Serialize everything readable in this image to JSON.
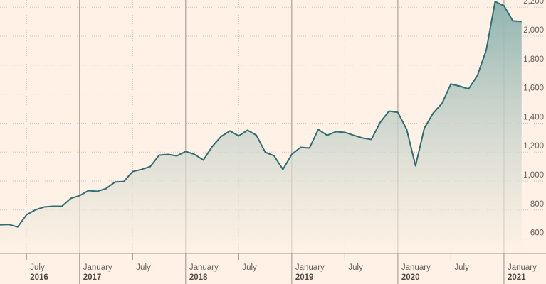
{
  "chart_data": {
    "type": "area",
    "color": "#2e6e73",
    "x": [
      "2016-04",
      "2016-05",
      "2016-06",
      "2016-07",
      "2016-08",
      "2016-09",
      "2016-10",
      "2016-11",
      "2016-12",
      "2017-01",
      "2017-02",
      "2017-03",
      "2017-04",
      "2017-05",
      "2017-06",
      "2017-07",
      "2017-08",
      "2017-09",
      "2017-10",
      "2017-11",
      "2017-12",
      "2018-01",
      "2018-02",
      "2018-03",
      "2018-04",
      "2018-05",
      "2018-06",
      "2018-07",
      "2018-08",
      "2018-09",
      "2018-10",
      "2018-11",
      "2018-12",
      "2019-01",
      "2019-02",
      "2019-03",
      "2019-04",
      "2019-05",
      "2019-06",
      "2019-07",
      "2019-08",
      "2019-09",
      "2019-10",
      "2019-11",
      "2019-12",
      "2020-01",
      "2020-02",
      "2020-03",
      "2020-04",
      "2020-05",
      "2020-06",
      "2020-07",
      "2020-08",
      "2020-09",
      "2020-10",
      "2020-11",
      "2020-12",
      "2021-01",
      "2021-02",
      "2021-03"
    ],
    "values": [
      698,
      700,
      683,
      767,
      801,
      821,
      826,
      826,
      880,
      899,
      934,
      929,
      948,
      993,
      997,
      1066,
      1080,
      1100,
      1179,
      1184,
      1174,
      1204,
      1184,
      1145,
      1238,
      1307,
      1346,
      1312,
      1351,
      1316,
      1199,
      1174,
      1080,
      1184,
      1233,
      1228,
      1356,
      1316,
      1341,
      1336,
      1316,
      1297,
      1287,
      1405,
      1483,
      1474,
      1356,
      1105,
      1366,
      1469,
      1537,
      1670,
      1655,
      1636,
      1729,
      1905,
      2239,
      2210,
      2106,
      2101
    ],
    "ylim": [
      500,
      2250
    ],
    "yticks": [
      600,
      800,
      {
        "value": 1000,
        "label": "1,000"
      },
      {
        "value": 1200,
        "label": "1,200"
      },
      {
        "value": 1400,
        "label": "1,400"
      },
      {
        "value": 1600,
        "label": "1,600"
      },
      {
        "value": 1800,
        "label": "1,800"
      },
      {
        "value": 2000,
        "label": "2,000"
      },
      {
        "value": 2200,
        "label": "2,200"
      }
    ],
    "xticks": [
      {
        "value": "2016-07",
        "label": "July"
      },
      {
        "value": "2017-01",
        "label": "January"
      },
      {
        "value": "2017-07",
        "label": "July"
      },
      {
        "value": "2018-01",
        "label": "January"
      },
      {
        "value": "2018-07",
        "label": "July"
      },
      {
        "value": "2019-01",
        "label": "January"
      },
      {
        "value": "2019-07",
        "label": "July"
      },
      {
        "value": "2020-01",
        "label": "January"
      },
      {
        "value": "2020-07",
        "label": "July"
      },
      {
        "value": "2021-01",
        "label": "January"
      }
    ],
    "xtick_years": [
      {
        "value": "2016-07",
        "label": "2016"
      },
      {
        "value": "2017-01",
        "label": "2017"
      },
      {
        "value": "2018-01",
        "label": "2018"
      },
      {
        "value": "2019-01",
        "label": "2019"
      },
      {
        "value": "2020-01",
        "label": "2020"
      },
      {
        "value": "2021-01",
        "label": "2021"
      }
    ],
    "grid": true
  }
}
